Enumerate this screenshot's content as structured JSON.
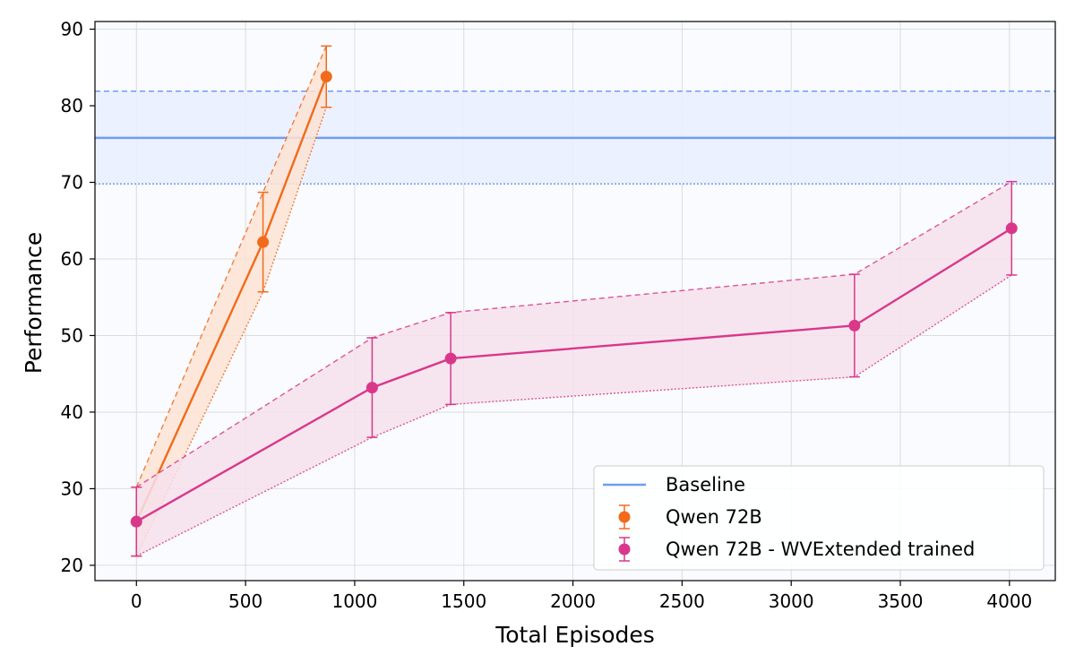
{
  "chart_data": {
    "type": "line",
    "title": "",
    "xlabel": "Total Episodes",
    "ylabel": "Performance",
    "xlim": [
      -190,
      4210
    ],
    "ylim": [
      18,
      91
    ],
    "xticks": [
      0,
      500,
      1000,
      1500,
      2000,
      2500,
      3000,
      3500,
      4000
    ],
    "yticks": [
      20,
      30,
      40,
      50,
      60,
      70,
      80,
      90
    ],
    "grid": true,
    "legend_placement": "lower-right",
    "baseline": {
      "name": "Baseline",
      "value": 75.8,
      "upper": 81.9,
      "lower": 69.8,
      "color": "#6f9cf5",
      "band_color": "#eaf0ff"
    },
    "series": [
      {
        "name": "Qwen 72B",
        "color": "#f26a1b",
        "band_color": "#fde3d4",
        "x": [
          0,
          580,
          870
        ],
        "y": [
          25.7,
          62.2,
          83.8
        ],
        "upper": [
          30.2,
          68.7,
          87.8
        ],
        "lower": [
          21.2,
          55.7,
          79.8
        ]
      },
      {
        "name": "Qwen 72B - WVExtended trained",
        "color": "#d9388a",
        "band_color": "#f6e0ec",
        "x": [
          0,
          1080,
          1440,
          3290,
          4010
        ],
        "y": [
          25.7,
          43.2,
          47.0,
          51.3,
          64.0
        ],
        "upper": [
          30.2,
          49.7,
          53.0,
          58.0,
          70.1
        ],
        "lower": [
          21.2,
          36.7,
          41.0,
          44.6,
          57.9
        ]
      }
    ]
  }
}
